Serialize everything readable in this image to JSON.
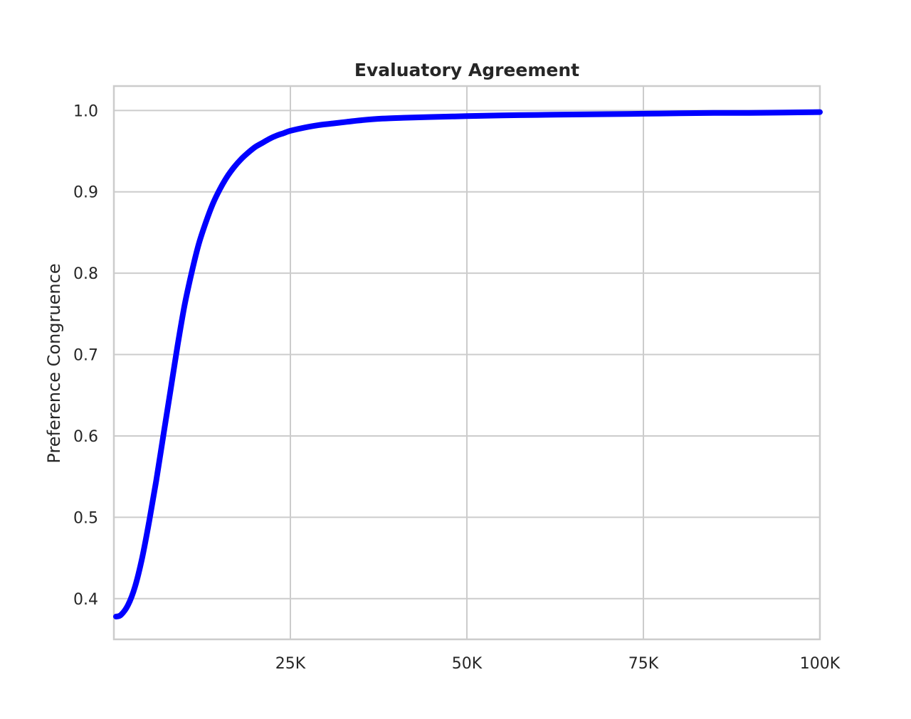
{
  "chart_data": {
    "type": "line",
    "title": "Evaluatory Agreement",
    "xlabel": "",
    "ylabel": "Preference Congruence",
    "xlim": [
      0,
      100000
    ],
    "ylim": [
      0.35,
      1.03
    ],
    "xticks": [
      25000,
      50000,
      75000,
      100000
    ],
    "xtick_labels": [
      "25K",
      "50K",
      "75K",
      "100K"
    ],
    "yticks": [
      0.4,
      0.5,
      0.6,
      0.7,
      0.8,
      0.9,
      1.0
    ],
    "ytick_labels": [
      "0.4",
      "0.5",
      "0.6",
      "0.7",
      "0.8",
      "0.9",
      "1.0"
    ],
    "grid": true,
    "line_color": "#0000ff",
    "series": [
      {
        "x": [
          300,
          1000,
          2000,
          3000,
          4000,
          5000,
          6000,
          7000,
          8000,
          9000,
          10000,
          11000,
          12000,
          13000,
          14000,
          15000,
          16000,
          17000,
          18000,
          19000,
          20000,
          21000,
          22000,
          23000,
          24000,
          25000,
          27000,
          29000,
          31000,
          33000,
          35000,
          38000,
          41000,
          45000,
          50000,
          55000,
          60000,
          65000,
          70000,
          75000,
          80000,
          85000,
          90000,
          95000,
          100000
        ],
        "y": [
          0.378,
          0.38,
          0.392,
          0.415,
          0.45,
          0.495,
          0.545,
          0.6,
          0.655,
          0.71,
          0.76,
          0.8,
          0.835,
          0.862,
          0.885,
          0.903,
          0.918,
          0.93,
          0.94,
          0.948,
          0.955,
          0.96,
          0.965,
          0.969,
          0.972,
          0.975,
          0.979,
          0.982,
          0.984,
          0.986,
          0.988,
          0.99,
          0.991,
          0.992,
          0.993,
          0.994,
          0.9945,
          0.995,
          0.9955,
          0.996,
          0.9965,
          0.997,
          0.997,
          0.9975,
          0.998
        ]
      }
    ]
  }
}
